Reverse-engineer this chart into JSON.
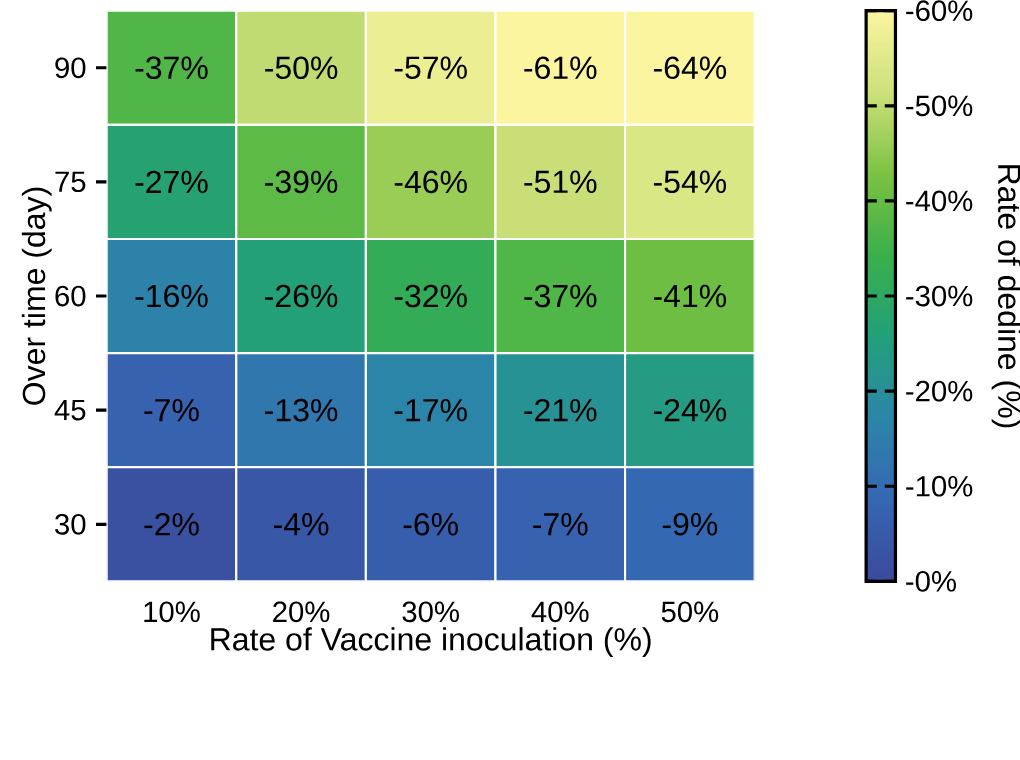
{
  "chart_data": {
    "type": "heatmap",
    "xlabel": "Rate of Vaccine inoculation (%)",
    "ylabel": "Over time (day)",
    "clabel": "Rate of dedine (%)",
    "categories": [
      "10%",
      "20%",
      "30%",
      "40%",
      "50%"
    ],
    "y_categories": [
      "90",
      "75",
      "60",
      "45",
      "30"
    ],
    "cells": [
      [
        -37,
        -50,
        -57,
        -61,
        -64
      ],
      [
        -27,
        -39,
        -46,
        -51,
        -54
      ],
      [
        -16,
        -26,
        -32,
        -37,
        -41
      ],
      [
        -7,
        -13,
        -17,
        -21,
        -24
      ],
      [
        -2,
        -4,
        -6,
        -7,
        -9
      ]
    ],
    "cell_labels": [
      [
        "-37%",
        "-50%",
        "-57%",
        "-61%",
        "-64%"
      ],
      [
        "-27%",
        "-39%",
        "-46%",
        "-51%",
        "-54%"
      ],
      [
        "-16%",
        "-26%",
        "-32%",
        "-37%",
        "-41%"
      ],
      [
        "-7%",
        "-13%",
        "-17%",
        "-21%",
        "-24%"
      ],
      [
        "-2%",
        "-4%",
        "-6%",
        "-7%",
        "-9%"
      ]
    ],
    "clim": [
      0,
      -60
    ],
    "cticks": [
      {
        "value": 0,
        "label": "-0%"
      },
      {
        "value": -10,
        "label": "-10%"
      },
      {
        "value": -20,
        "label": "-20%"
      },
      {
        "value": -30,
        "label": "-30%"
      },
      {
        "value": -40,
        "label": "-40%"
      },
      {
        "value": -50,
        "label": "-50%"
      },
      {
        "value": -60,
        "label": "-60%"
      }
    ]
  }
}
